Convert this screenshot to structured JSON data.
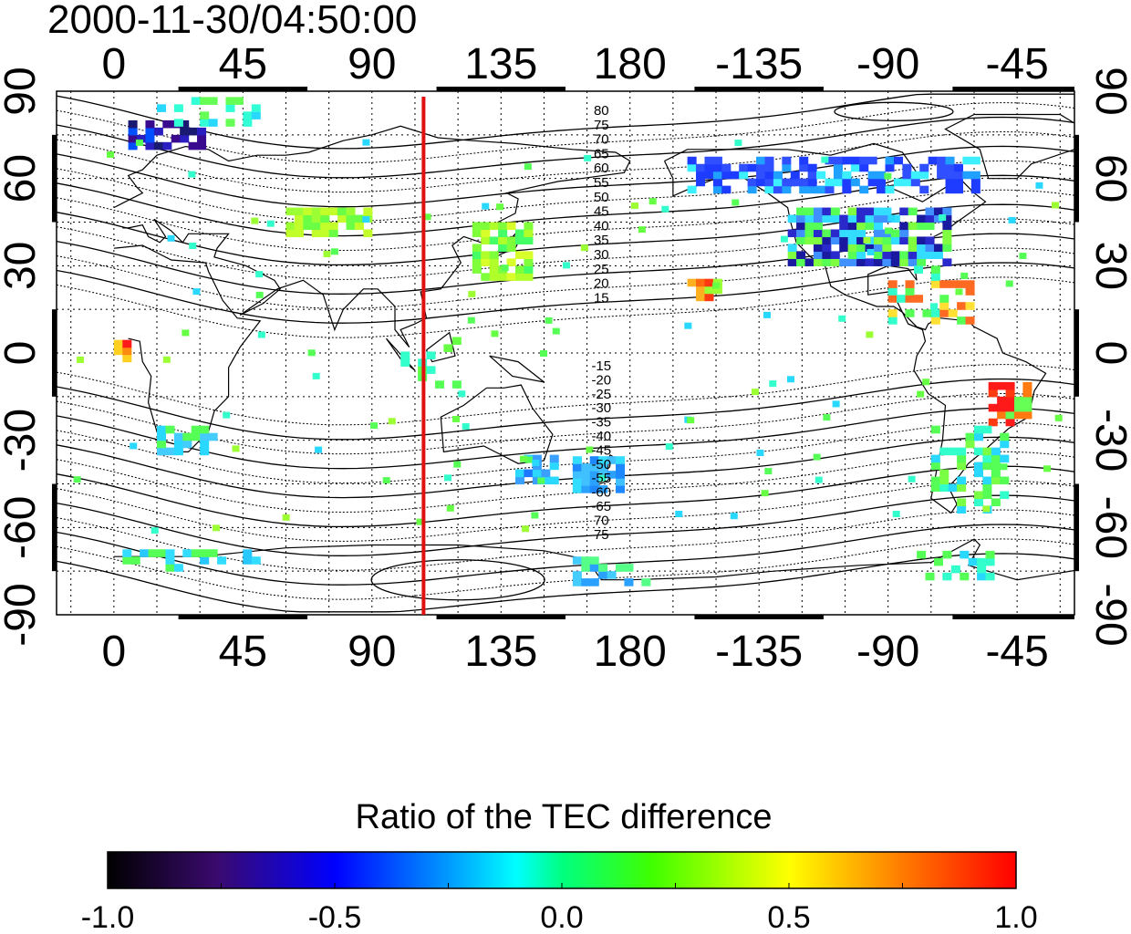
{
  "title": "2000-11-30/04:50:00",
  "axes": {
    "lon_ticks": [
      "0",
      "45",
      "90",
      "135",
      "180",
      "-135",
      "-90",
      "-45"
    ],
    "lat_ticks": [
      "90",
      "60",
      "30",
      "0",
      "-30",
      "-60",
      "-90"
    ]
  },
  "map": {
    "lon_range": [
      -20,
      335
    ],
    "lat_range": [
      -90,
      90
    ],
    "gridlines": "dotted",
    "marker_meridian_lon": 108,
    "marker_color": "#e01010",
    "contour_labels_north": [
      "80",
      "75",
      "70",
      "65",
      "60",
      "55",
      "50",
      "45",
      "40",
      "35",
      "30",
      "25",
      "20",
      "15"
    ],
    "contour_labels_south": [
      "-15",
      "-20",
      "-25",
      "-30",
      "-35",
      "-40",
      "-45",
      "-50",
      "-55",
      "-60",
      "-65",
      "70",
      "75"
    ]
  },
  "colorbar": {
    "title": "Ratio of the TEC difference",
    "min": -1.0,
    "max": 1.0,
    "tick_labels": [
      "-1.0",
      "-0.5",
      "0.0",
      "0.5",
      "1.0"
    ]
  }
}
